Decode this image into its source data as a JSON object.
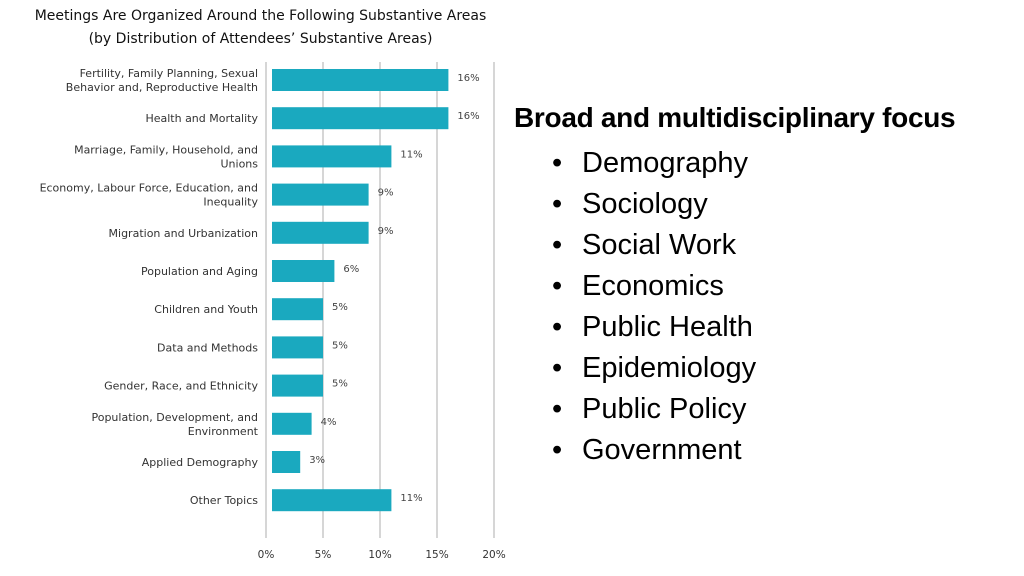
{
  "title": {
    "line1": "Meetings Are Organized Around the Following Substantive Areas",
    "line2": "(by Distribution of Attendees’ Substantive Areas)"
  },
  "chart_data": {
    "type": "bar",
    "orientation": "horizontal",
    "categories": [
      [
        "Fertility, Family Planning, Sexual",
        "Behavior and, Reproductive Health"
      ],
      [
        "Health and Mortality"
      ],
      [
        "Marriage, Family, Household, and",
        "Unions"
      ],
      [
        "Economy, Labour Force, Education, and",
        "Inequality"
      ],
      [
        "Migration and Urbanization"
      ],
      [
        "Population and Aging"
      ],
      [
        "Children and Youth"
      ],
      [
        "Data and Methods"
      ],
      [
        "Gender, Race, and Ethnicity"
      ],
      [
        "Population, Development, and",
        "Environment"
      ],
      [
        "Applied Demography"
      ],
      [
        "Other Topics"
      ]
    ],
    "values": [
      16,
      16,
      11,
      9,
      9,
      6,
      5,
      5,
      5,
      4,
      3,
      11
    ],
    "value_labels": [
      "16%",
      "16%",
      "11%",
      "9%",
      "9%",
      "6%",
      "5%",
      "5%",
      "5%",
      "4%",
      "3%",
      "11%"
    ],
    "xticks": [
      0,
      5,
      10,
      15,
      20
    ],
    "xtick_labels": [
      "0%",
      "5%",
      "10%",
      "15%",
      "20%"
    ],
    "xlim": [
      0,
      20
    ],
    "grid": "vertical",
    "bar_color": "#1aa9bf",
    "grid_color": "#c8c8c8"
  },
  "side": {
    "heading": "Broad and multidisciplinary focus",
    "bullet_char": "•",
    "items": [
      "Demography",
      "Sociology",
      "Social Work",
      "Economics",
      "Public Health",
      "Epidemiology",
      "Public Policy",
      "Government"
    ]
  }
}
